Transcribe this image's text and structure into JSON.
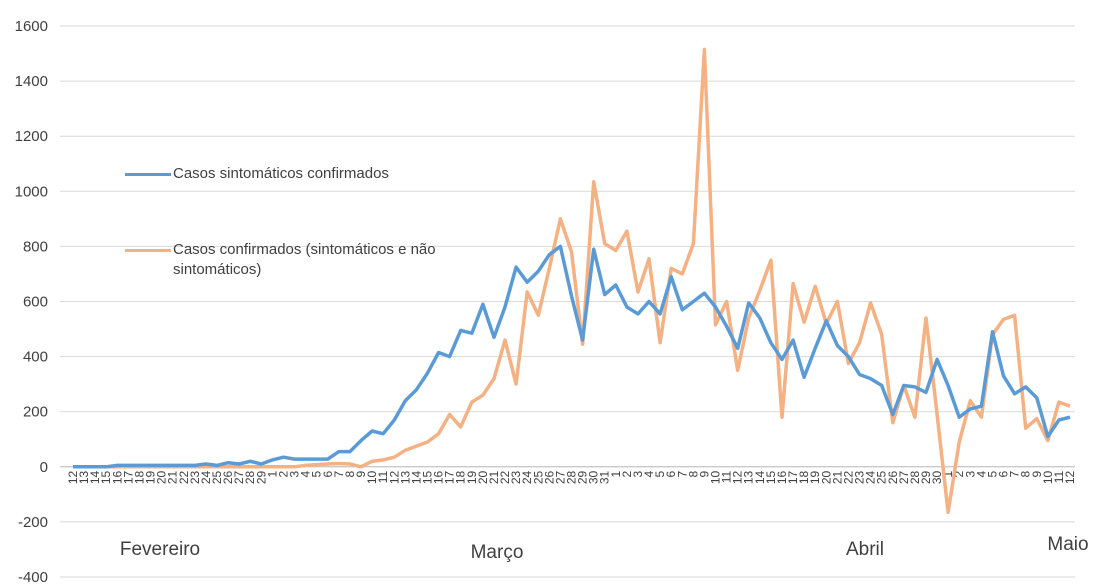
{
  "chart_data": {
    "type": "line",
    "categories": [
      "12",
      "13",
      "14",
      "15",
      "16",
      "17",
      "18",
      "19",
      "20",
      "21",
      "22",
      "23",
      "24",
      "25",
      "26",
      "27",
      "28",
      "29",
      "1",
      "2",
      "3",
      "4",
      "5",
      "6",
      "7",
      "8",
      "9",
      "10",
      "11",
      "12",
      "13",
      "14",
      "15",
      "16",
      "17",
      "18",
      "19",
      "20",
      "21",
      "22",
      "23",
      "24",
      "25",
      "26",
      "27",
      "28",
      "29",
      "30",
      "31",
      "1",
      "2",
      "3",
      "4",
      "5",
      "6",
      "7",
      "8",
      "9",
      "10",
      "11",
      "12",
      "13",
      "14",
      "15",
      "16",
      "17",
      "18",
      "19",
      "20",
      "21",
      "22",
      "23",
      "24",
      "25",
      "26",
      "27",
      "28",
      "29",
      "30",
      "1",
      "2",
      "3",
      "4",
      "5",
      "6",
      "7",
      "8",
      "9",
      "10",
      "11",
      "12"
    ],
    "series": [
      {
        "name": "Casos sintomáticos confirmados",
        "color": "#5b9bd5",
        "values": [
          0,
          0,
          0,
          0,
          5,
          5,
          5,
          5,
          5,
          5,
          5,
          5,
          10,
          5,
          15,
          10,
          20,
          10,
          25,
          35,
          28,
          28,
          28,
          28,
          55,
          55,
          95,
          130,
          120,
          170,
          240,
          280,
          340,
          415,
          400,
          495,
          485,
          590,
          470,
          580,
          725,
          670,
          710,
          770,
          800,
          620,
          460,
          790,
          625,
          660,
          580,
          555,
          600,
          555,
          690,
          570,
          600,
          630,
          580,
          510,
          430,
          595,
          540,
          450,
          390,
          460,
          325,
          430,
          530,
          440,
          400,
          335,
          320,
          295,
          190,
          295,
          290,
          270,
          390,
          295,
          180,
          210,
          220,
          490,
          330,
          265,
          290,
          250,
          110,
          170,
          180
        ]
      },
      {
        "name": "Casos confirmados (sintomáticos e não sintomáticos)",
        "color": "#f4b183",
        "values": [
          0,
          0,
          0,
          0,
          0,
          0,
          0,
          0,
          0,
          0,
          0,
          0,
          0,
          0,
          0,
          0,
          0,
          0,
          0,
          0,
          0,
          5,
          8,
          10,
          12,
          10,
          0,
          20,
          25,
          35,
          60,
          75,
          90,
          120,
          190,
          145,
          235,
          260,
          320,
          460,
          300,
          635,
          550,
          720,
          900,
          780,
          445,
          1035,
          810,
          785,
          855,
          635,
          755,
          450,
          720,
          700,
          810,
          1515,
          515,
          600,
          350,
          540,
          640,
          750,
          180,
          665,
          525,
          655,
          520,
          600,
          375,
          450,
          595,
          480,
          160,
          295,
          180,
          540,
          190,
          -165,
          90,
          240,
          180,
          480,
          535,
          550,
          140,
          175,
          95,
          235,
          220
        ]
      }
    ],
    "annotations": [
      "Fevereiro",
      "Março",
      "Abril",
      "Maio"
    ],
    "ylim": [
      -400,
      1600
    ],
    "yticks": [
      -400,
      -200,
      0,
      200,
      400,
      600,
      800,
      1000,
      1200,
      1400,
      1600
    ],
    "grid": true
  }
}
